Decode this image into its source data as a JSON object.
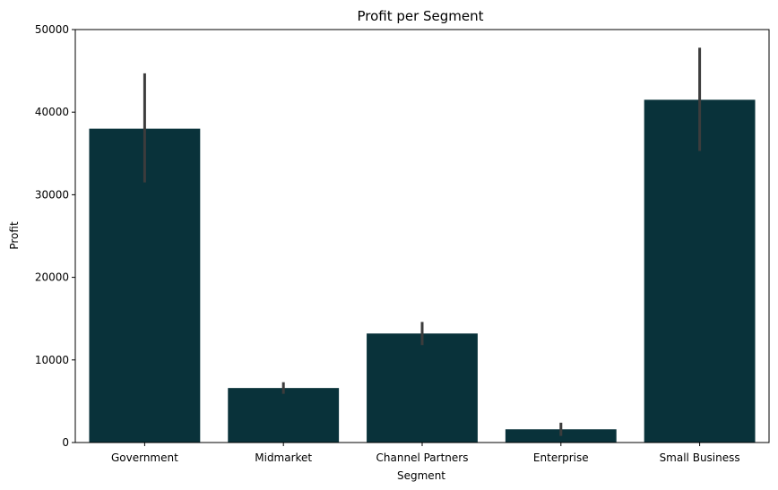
{
  "chart_data": {
    "type": "bar",
    "title": "Profit per Segment",
    "xlabel": "Segment",
    "ylabel": "Profit",
    "categories": [
      "Government",
      "Midmarket",
      "Channel Partners",
      "Enterprise",
      "Small Business"
    ],
    "values": [
      38000,
      6600,
      13200,
      1600,
      41500
    ],
    "error_bars": [
      {
        "low": 31500,
        "high": 44700
      },
      {
        "low": 5900,
        "high": 7300
      },
      {
        "low": 11800,
        "high": 14600
      },
      {
        "low": 800,
        "high": 2400
      },
      {
        "low": 35300,
        "high": 47800
      }
    ],
    "ylim": [
      0,
      50000
    ],
    "yticks": [
      0,
      10000,
      20000,
      30000,
      40000,
      50000
    ],
    "grid": false,
    "bar_color": "#09323a",
    "errorbar_color": "#3c3c3c"
  }
}
